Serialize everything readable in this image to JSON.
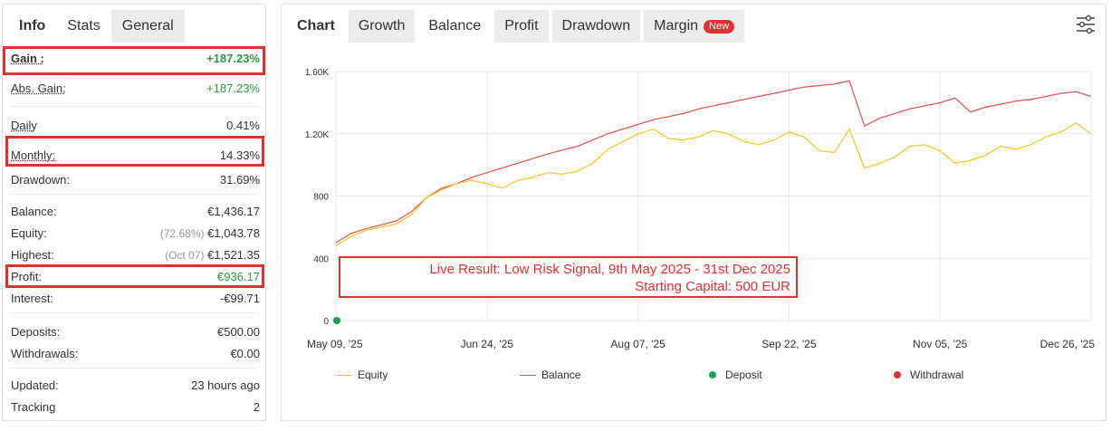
{
  "left": {
    "tabs": [
      "Info",
      "Stats",
      "General"
    ],
    "gain": {
      "label": "Gain :",
      "value": "+187.23%"
    },
    "abs_gain": {
      "label": "Abs. Gain:",
      "value": "+187.23%"
    },
    "daily": {
      "label": "Daily",
      "value": "0.41%"
    },
    "monthly": {
      "label": "Monthly:",
      "value": "14.33%"
    },
    "drawdown": {
      "label": "Drawdown:",
      "value": "31.69%"
    },
    "balance": {
      "label": "Balance:",
      "value": "€1,436.17"
    },
    "equity": {
      "label": "Equity:",
      "note": "(72.68%)",
      "value": "€1,043.78"
    },
    "highest": {
      "label": "Highest:",
      "note": "(Oct 07)",
      "value": "€1,521.35"
    },
    "profit": {
      "label": "Profit:",
      "value": "€936.17"
    },
    "interest": {
      "label": "Interest:",
      "value": "-€99.71"
    },
    "deposits": {
      "label": "Deposits:",
      "value": "€500.00"
    },
    "withdrawals": {
      "label": "Withdrawals:",
      "value": "€0.00"
    },
    "updated": {
      "label": "Updated:",
      "value": "23 hours ago"
    },
    "tracking": {
      "label": "Tracking",
      "value": "2"
    }
  },
  "right": {
    "tabs": [
      "Chart",
      "Growth",
      "Balance",
      "Profit",
      "Drawdown",
      "Margin"
    ],
    "active_tab": "Balance",
    "margin_badge": "New",
    "annotation": {
      "line1": "Live Result: Low Risk Signal, 9th May 2025 - 31st Dec 2025",
      "line2": "Starting Capital: 500 EUR"
    },
    "legend": {
      "equity": "Equity",
      "balance": "Balance",
      "deposit": "Deposit",
      "withdrawal": "Withdrawal"
    }
  },
  "colors": {
    "balance": "#e84b4b",
    "equity": "#f5c518",
    "deposit": "#1aa34a",
    "withdrawal": "#e03131",
    "highlight": "#e03131",
    "gain_green": "#2a9a3c"
  },
  "chart_data": {
    "type": "line",
    "x_ticks": [
      "May 09, '25",
      "Jun 24, '25",
      "Aug 07, '25",
      "Sep 22, '25",
      "Nov 05, '25",
      "Dec 26, '25"
    ],
    "y_ticks": [
      "0",
      "400",
      "800",
      "1.20K",
      "1.60K"
    ],
    "ylim": [
      0,
      1600
    ],
    "grid": true,
    "series": [
      {
        "name": "Balance",
        "x": [
          0,
          2,
          4,
          6,
          8,
          10,
          12,
          14,
          16,
          18,
          20,
          22,
          24,
          26,
          28,
          30,
          32,
          34,
          36,
          38,
          40,
          42,
          44,
          46,
          48,
          50,
          52,
          54,
          56,
          58,
          60,
          62,
          64,
          66,
          68,
          70,
          72,
          74,
          76,
          78,
          80,
          82,
          84,
          86,
          88,
          90,
          92,
          94,
          96,
          98,
          100
        ],
        "values": [
          500,
          560,
          590,
          615,
          640,
          700,
          790,
          850,
          880,
          920,
          950,
          980,
          1010,
          1040,
          1070,
          1095,
          1120,
          1160,
          1200,
          1230,
          1260,
          1290,
          1310,
          1330,
          1360,
          1380,
          1400,
          1420,
          1440,
          1460,
          1480,
          1500,
          1510,
          1520,
          1540,
          1250,
          1300,
          1330,
          1360,
          1380,
          1400,
          1430,
          1340,
          1370,
          1390,
          1410,
          1420,
          1440,
          1460,
          1470,
          1440
        ]
      },
      {
        "name": "Equity",
        "x": [
          0,
          2,
          4,
          6,
          8,
          10,
          12,
          14,
          16,
          18,
          20,
          22,
          24,
          26,
          28,
          30,
          32,
          34,
          36,
          38,
          40,
          42,
          44,
          46,
          48,
          50,
          52,
          54,
          56,
          58,
          60,
          62,
          64,
          66,
          68,
          70,
          72,
          74,
          76,
          78,
          80,
          82,
          84,
          86,
          88,
          90,
          92,
          94,
          96,
          98,
          100
        ],
        "values": [
          480,
          540,
          580,
          600,
          620,
          680,
          790,
          840,
          880,
          900,
          880,
          850,
          900,
          920,
          950,
          940,
          960,
          1010,
          1100,
          1150,
          1200,
          1230,
          1170,
          1160,
          1180,
          1220,
          1200,
          1150,
          1130,
          1160,
          1210,
          1180,
          1090,
          1080,
          1230,
          980,
          1010,
          1050,
          1120,
          1130,
          1090,
          1010,
          1030,
          1060,
          1120,
          1100,
          1130,
          1180,
          1210,
          1270,
          1200
        ]
      },
      {
        "name": "Deposit",
        "x": [
          0
        ],
        "values": [
          0
        ]
      }
    ]
  }
}
